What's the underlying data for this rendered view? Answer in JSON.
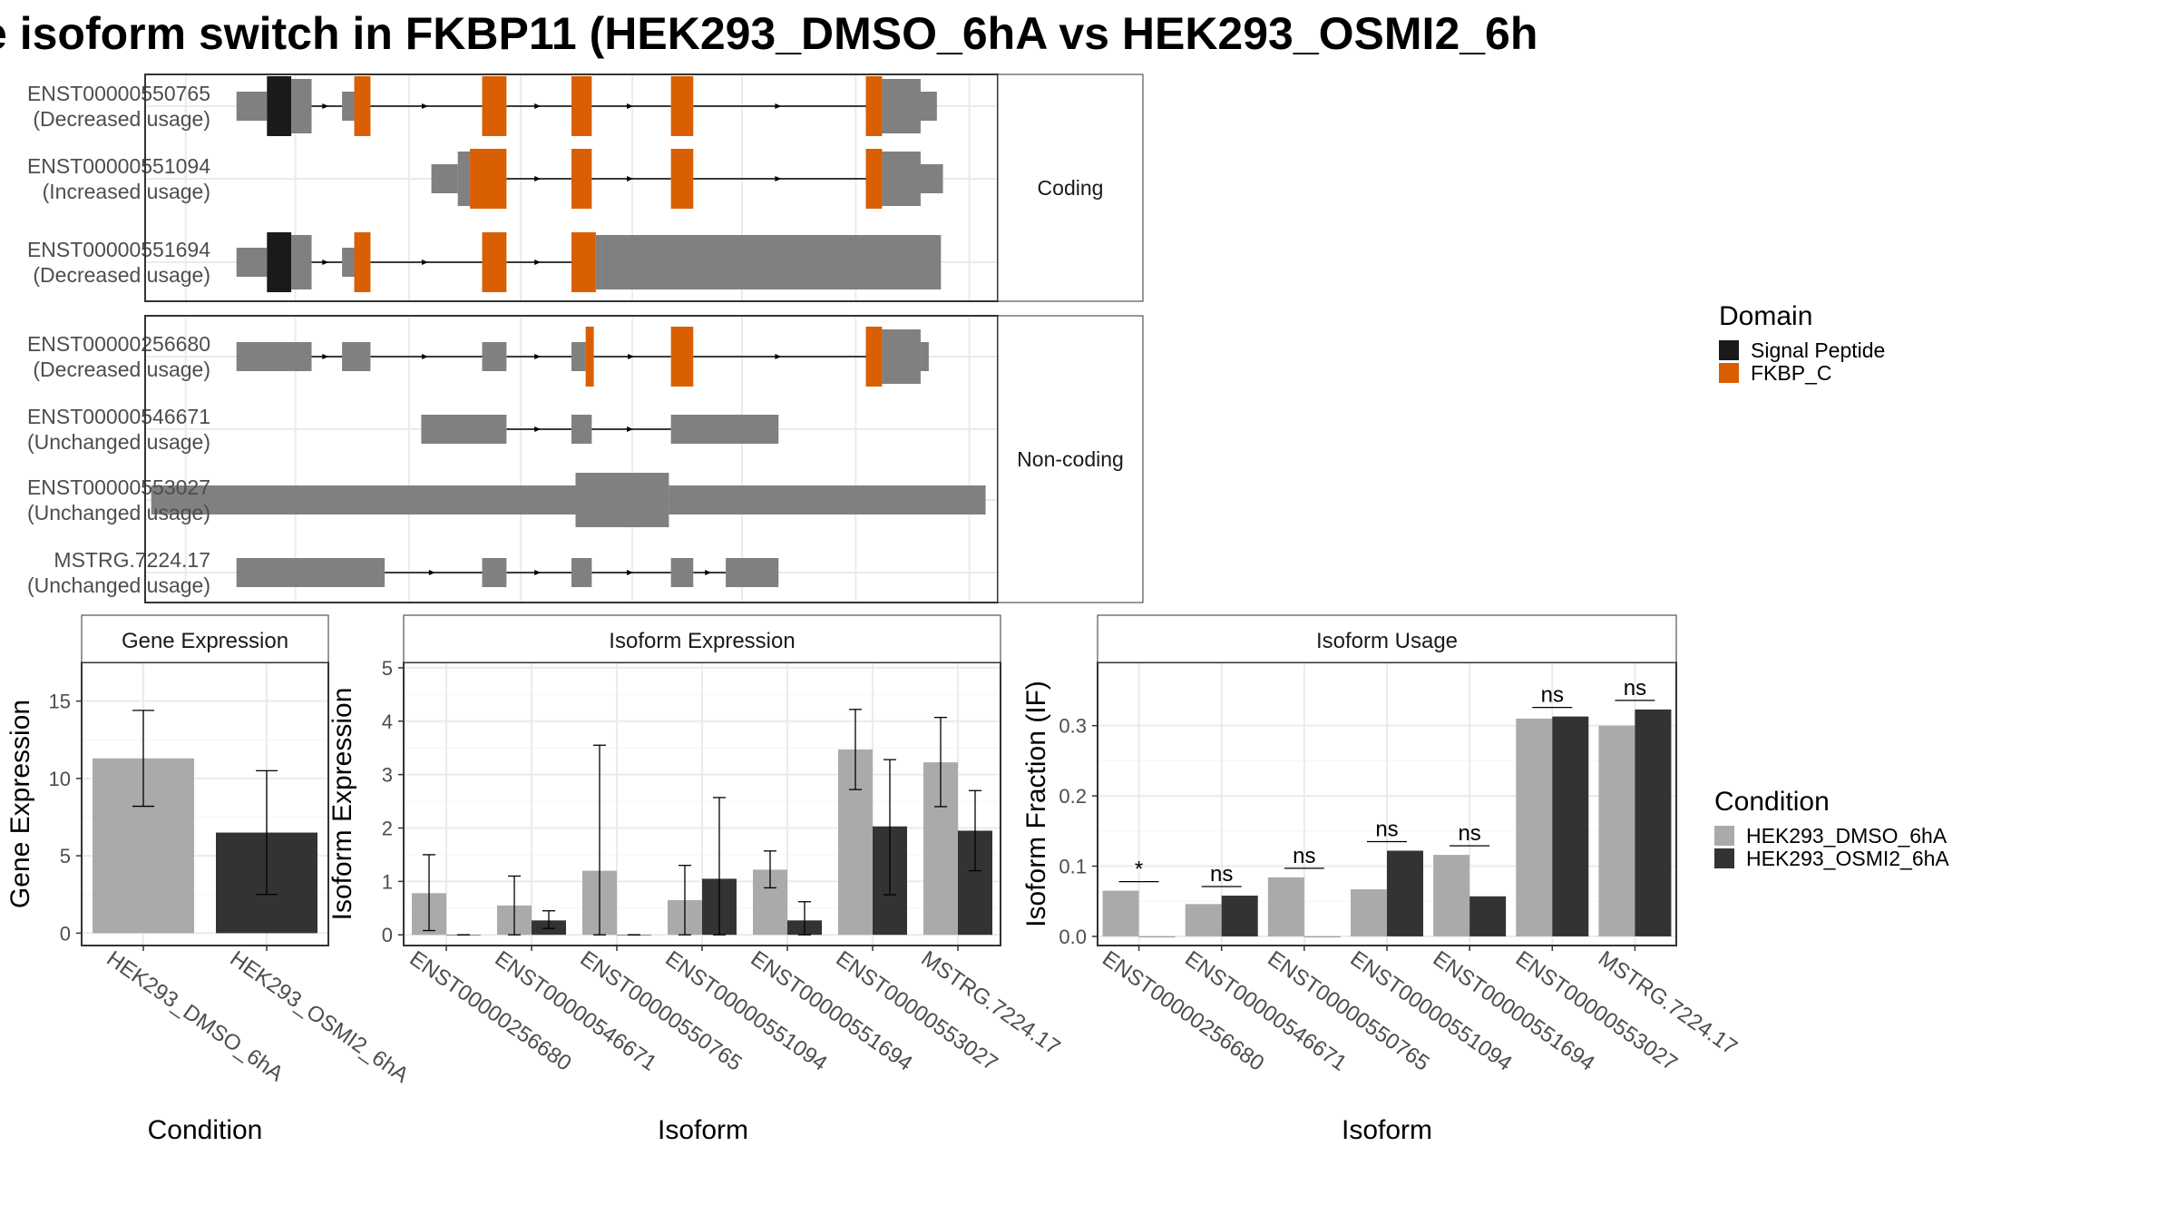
{
  "title": "e isoform switch in FKBP11 (HEK293_DMSO_6hA vs HEK293_OSMI2_6h",
  "colors": {
    "grey_feature": "#808080",
    "signal_peptide": "#1a1a1a",
    "fkbp_c": "#d95f02",
    "dmso": "#aaaaaa",
    "osmi2": "#333333",
    "strip": "#ffffff",
    "grid": "#ebebeb"
  },
  "domain_legend": {
    "title": "Domain",
    "items": [
      {
        "label": "Signal Peptide",
        "color": "#1a1a1a"
      },
      {
        "label": "FKBP_C",
        "color": "#d95f02"
      }
    ]
  },
  "condition_legend": {
    "title": "Condition",
    "items": [
      {
        "label": "HEK293_DMSO_6hA",
        "color": "#aaaaaa"
      },
      {
        "label": "HEK293_OSMI2_6hA",
        "color": "#333333"
      }
    ]
  },
  "structure": {
    "groups": [
      {
        "label": "Coding",
        "transcripts": [
          {
            "id": "ENST00000550765",
            "usage": "(Decreased usage)",
            "segments": [
              [
                1.05,
                1.8,
                "n"
              ],
              [
                1.8,
                2.4,
                "sp"
              ],
              [
                2.4,
                2.9,
                "u"
              ],
              [
                3.65,
                3.95,
                "n"
              ],
              [
                3.95,
                4.35,
                "d"
              ],
              [
                7.1,
                7.7,
                "d"
              ],
              [
                9.3,
                9.8,
                "d"
              ],
              [
                11.75,
                12.3,
                "d"
              ],
              [
                16.55,
                16.95,
                "d"
              ],
              [
                16.95,
                17.9,
                "u"
              ],
              [
                17.9,
                18.3,
                "n"
              ]
            ],
            "introns": [
              [
                2.9,
                3.65
              ],
              [
                4.35,
                7.1
              ],
              [
                7.7,
                9.3
              ],
              [
                9.8,
                11.75
              ],
              [
                12.3,
                16.55
              ]
            ]
          },
          {
            "id": "ENST00000551094",
            "usage": "(Increased usage)",
            "segments": [
              [
                5.85,
                6.5,
                "n"
              ],
              [
                6.5,
                6.8,
                "u"
              ],
              [
                6.8,
                7.7,
                "d"
              ],
              [
                9.3,
                9.8,
                "d"
              ],
              [
                11.75,
                12.3,
                "d"
              ],
              [
                16.55,
                16.95,
                "d"
              ],
              [
                16.95,
                17.9,
                "u"
              ],
              [
                17.9,
                18.45,
                "n"
              ]
            ],
            "introns": [
              [
                7.7,
                9.3
              ],
              [
                9.8,
                11.75
              ],
              [
                12.3,
                16.55
              ]
            ]
          },
          {
            "id": "ENST00000551694",
            "usage": "(Decreased usage)",
            "segments": [
              [
                1.05,
                1.8,
                "n"
              ],
              [
                1.8,
                2.4,
                "sp"
              ],
              [
                2.4,
                2.9,
                "u"
              ],
              [
                3.65,
                3.95,
                "n"
              ],
              [
                3.95,
                4.35,
                "d"
              ],
              [
                7.1,
                7.7,
                "d"
              ],
              [
                9.3,
                9.9,
                "d"
              ],
              [
                9.9,
                10.05,
                "u"
              ],
              [
                10.05,
                18.4,
                "u"
              ]
            ],
            "introns": [
              [
                2.9,
                3.65
              ],
              [
                4.35,
                7.1
              ],
              [
                7.7,
                9.3
              ]
            ]
          }
        ]
      },
      {
        "label": "Non-coding",
        "transcripts": [
          {
            "id": "ENST00000256680",
            "usage": "(Decreased usage)",
            "segments": [
              [
                1.05,
                2.9,
                "n"
              ],
              [
                3.65,
                4.35,
                "n"
              ],
              [
                7.1,
                7.7,
                "n"
              ],
              [
                9.3,
                9.65,
                "n"
              ],
              [
                9.65,
                9.85,
                "d"
              ],
              [
                11.75,
                12.3,
                "d"
              ],
              [
                16.55,
                16.95,
                "d"
              ],
              [
                16.95,
                17.9,
                "u"
              ],
              [
                17.9,
                18.1,
                "n"
              ]
            ],
            "introns": [
              [
                2.9,
                3.65
              ],
              [
                4.35,
                7.1
              ],
              [
                7.7,
                9.3
              ],
              [
                9.85,
                11.75
              ],
              [
                12.3,
                16.55
              ]
            ]
          },
          {
            "id": "ENST00000546671",
            "usage": "(Unchanged usage)",
            "segments": [
              [
                5.6,
                7.7,
                "n"
              ],
              [
                9.3,
                9.8,
                "n"
              ],
              [
                11.75,
                14.4,
                "n"
              ]
            ],
            "introns": [
              [
                7.7,
                9.3
              ],
              [
                9.8,
                11.75
              ]
            ]
          },
          {
            "id": "ENST00000553027",
            "usage": "(Unchanged usage)",
            "segments": [
              [
                -1.05,
                9.4,
                "n"
              ],
              [
                9.4,
                11.7,
                "u"
              ],
              [
                11.7,
                19.5,
                "n"
              ]
            ],
            "introns": []
          },
          {
            "id": "MSTRG.7224.17",
            "usage": "(Unchanged usage)",
            "segments": [
              [
                1.05,
                4.7,
                "n"
              ],
              [
                7.1,
                7.7,
                "n"
              ],
              [
                9.3,
                9.8,
                "n"
              ],
              [
                11.75,
                12.3,
                "n"
              ],
              [
                13.1,
                14.4,
                "n"
              ]
            ],
            "introns": [
              [
                4.7,
                7.1
              ],
              [
                7.7,
                9.3
              ],
              [
                9.8,
                11.75
              ],
              [
                12.3,
                13.1
              ]
            ]
          }
        ]
      }
    ]
  },
  "chart_data": [
    {
      "type": "bar",
      "strip": "Gene Expression",
      "xlabel": "Condition",
      "ylabel": "Gene Expression",
      "categories": [
        "HEK293_DMSO_6hA",
        "HEK293_OSMI2_6hA"
      ],
      "ylim": [
        -0.8,
        17.5
      ],
      "yticks": [
        0,
        5,
        10,
        15
      ],
      "series": [
        {
          "name": "HEK293_DMSO_6hA",
          "values": [
            11.3,
            null
          ],
          "err_low": [
            8.2,
            null
          ],
          "err_high": [
            14.4,
            null
          ]
        },
        {
          "name": "HEK293_OSMI2_6hA",
          "values": [
            null,
            6.5
          ],
          "err_low": [
            null,
            2.5
          ],
          "err_high": [
            null,
            10.5
          ]
        }
      ]
    },
    {
      "type": "bar",
      "strip": "Isoform Expression",
      "xlabel": "Isoform",
      "ylabel": "Isoform Expression",
      "categories": [
        "ENST00000256680",
        "ENST00000546671",
        "ENST00000550765",
        "ENST00000551094",
        "ENST00000551694",
        "ENST00000553027",
        "MSTRG.7224.17"
      ],
      "ylim": [
        -0.2,
        5.1
      ],
      "yticks": [
        0,
        1,
        2,
        3,
        4,
        5
      ],
      "series": [
        {
          "name": "HEK293_DMSO_6hA",
          "values": [
            0.78,
            0.55,
            1.2,
            0.65,
            1.22,
            3.47,
            3.23
          ],
          "err_low": [
            0.08,
            0.0,
            0.0,
            0.0,
            0.88,
            2.72,
            2.4
          ],
          "err_high": [
            1.5,
            1.1,
            3.55,
            1.3,
            1.57,
            4.22,
            4.07
          ]
        },
        {
          "name": "HEK293_OSMI2_6hA",
          "values": [
            0.0,
            0.27,
            0.0,
            1.05,
            0.27,
            2.03,
            1.95
          ],
          "err_low": [
            0.0,
            0.12,
            0.0,
            0.0,
            0.0,
            0.75,
            1.2
          ],
          "err_high": [
            0.0,
            0.45,
            0.0,
            2.57,
            0.62,
            3.28,
            2.7
          ]
        }
      ]
    },
    {
      "type": "bar",
      "strip": "Isoform Usage",
      "xlabel": "Isoform",
      "ylabel": "Isoform Fraction (IF)",
      "categories": [
        "ENST00000256680",
        "ENST00000546671",
        "ENST00000550765",
        "ENST00000551094",
        "ENST00000551694",
        "ENST00000553027",
        "MSTRG.7224.17"
      ],
      "ylim": [
        -0.013,
        0.39
      ],
      "yticks": [
        0.0,
        0.1,
        0.2,
        0.3
      ],
      "ytick_labels": [
        "0.0",
        "0.1",
        "0.2",
        "0.3"
      ],
      "series": [
        {
          "name": "HEK293_DMSO_6hA",
          "values": [
            0.065,
            0.046,
            0.084,
            0.067,
            0.116,
            0.31,
            0.3
          ]
        },
        {
          "name": "HEK293_OSMI2_6hA",
          "values": [
            0.0,
            0.058,
            0.0,
            0.122,
            0.057,
            0.313,
            0.323
          ]
        }
      ],
      "significance": [
        "*",
        "ns",
        "ns",
        "ns",
        "ns",
        "ns",
        "ns"
      ]
    }
  ]
}
